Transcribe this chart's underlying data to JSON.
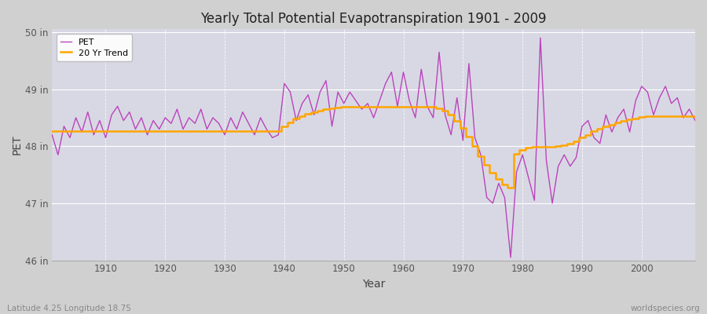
{
  "title": "Yearly Total Potential Evapotranspiration 1901 - 2009",
  "xlabel": "Year",
  "ylabel": "PET",
  "subtitle_left": "Latitude 4.25 Longitude 18.75",
  "subtitle_right": "worldspecies.org",
  "ylim": [
    46,
    50.05
  ],
  "xlim": [
    1901,
    2009
  ],
  "yticks": [
    46,
    47,
    48,
    49,
    50
  ],
  "ytick_labels": [
    "46 in",
    "47 in",
    "48 in",
    "49 in",
    "50 in"
  ],
  "xticks": [
    1910,
    1920,
    1930,
    1940,
    1950,
    1960,
    1970,
    1980,
    1990,
    2000
  ],
  "fig_bg_color": "#d0d0d0",
  "plot_bg_color": "#d8d8e4",
  "pet_color": "#bb44bb",
  "trend_color": "#FFA500",
  "legend_labels": [
    "PET",
    "20 Yr Trend"
  ],
  "years": [
    1901,
    1902,
    1903,
    1904,
    1905,
    1906,
    1907,
    1908,
    1909,
    1910,
    1911,
    1912,
    1913,
    1914,
    1915,
    1916,
    1917,
    1918,
    1919,
    1920,
    1921,
    1922,
    1923,
    1924,
    1925,
    1926,
    1927,
    1928,
    1929,
    1930,
    1931,
    1932,
    1933,
    1934,
    1935,
    1936,
    1937,
    1938,
    1939,
    1940,
    1941,
    1942,
    1943,
    1944,
    1945,
    1946,
    1947,
    1948,
    1949,
    1950,
    1951,
    1952,
    1953,
    1954,
    1955,
    1956,
    1957,
    1958,
    1959,
    1960,
    1961,
    1962,
    1963,
    1964,
    1965,
    1966,
    1967,
    1968,
    1969,
    1970,
    1971,
    1972,
    1973,
    1974,
    1975,
    1976,
    1977,
    1978,
    1979,
    1980,
    1981,
    1982,
    1983,
    1984,
    1985,
    1986,
    1987,
    1988,
    1989,
    1990,
    1991,
    1992,
    1993,
    1994,
    1995,
    1996,
    1997,
    1998,
    1999,
    2000,
    2001,
    2002,
    2003,
    2004,
    2005,
    2006,
    2007,
    2008,
    2009
  ],
  "pet_values": [
    48.2,
    47.85,
    48.35,
    48.15,
    48.5,
    48.25,
    48.6,
    48.2,
    48.45,
    48.15,
    48.55,
    48.7,
    48.45,
    48.6,
    48.3,
    48.5,
    48.2,
    48.45,
    48.3,
    48.5,
    48.4,
    48.65,
    48.3,
    48.5,
    48.4,
    48.65,
    48.3,
    48.5,
    48.4,
    48.2,
    48.5,
    48.3,
    48.6,
    48.4,
    48.2,
    48.5,
    48.3,
    48.15,
    48.2,
    49.1,
    48.95,
    48.45,
    48.75,
    48.9,
    48.55,
    48.95,
    49.15,
    48.35,
    48.95,
    48.75,
    48.95,
    48.8,
    48.65,
    48.75,
    48.5,
    48.8,
    49.1,
    49.3,
    48.7,
    49.3,
    48.8,
    48.5,
    49.35,
    48.7,
    48.5,
    49.65,
    48.55,
    48.2,
    48.85,
    48.1,
    49.45,
    48.15,
    47.85,
    47.1,
    47.0,
    47.35,
    47.1,
    46.05,
    47.55,
    47.85,
    47.45,
    47.05,
    49.9,
    47.75,
    47.0,
    47.65,
    47.85,
    47.65,
    47.8,
    48.35,
    48.45,
    48.15,
    48.05,
    48.55,
    48.25,
    48.5,
    48.65,
    48.25,
    48.8,
    49.05,
    48.95,
    48.55,
    48.85,
    49.05,
    48.75,
    48.85,
    48.5,
    48.65,
    48.45
  ],
  "trend_values": [
    48.27,
    48.27,
    48.27,
    48.27,
    48.27,
    48.27,
    48.27,
    48.27,
    48.27,
    48.27,
    48.27,
    48.27,
    48.27,
    48.27,
    48.27,
    48.27,
    48.27,
    48.27,
    48.27,
    48.27,
    48.27,
    48.27,
    48.27,
    48.27,
    48.27,
    48.27,
    48.27,
    48.27,
    48.27,
    48.27,
    48.27,
    48.27,
    48.27,
    48.27,
    48.27,
    48.27,
    48.27,
    48.27,
    48.27,
    48.35,
    48.42,
    48.48,
    48.53,
    48.57,
    48.6,
    48.63,
    48.65,
    48.67,
    48.68,
    48.69,
    48.69,
    48.69,
    48.69,
    48.69,
    48.69,
    48.69,
    48.69,
    48.69,
    48.69,
    48.69,
    48.69,
    48.69,
    48.69,
    48.69,
    48.69,
    48.67,
    48.62,
    48.55,
    48.45,
    48.32,
    48.17,
    48.0,
    47.83,
    47.68,
    47.54,
    47.42,
    47.33,
    47.27,
    47.87,
    47.93,
    47.97,
    47.99,
    47.99,
    47.99,
    47.99,
    48.0,
    48.02,
    48.05,
    48.09,
    48.15,
    48.2,
    48.26,
    48.31,
    48.35,
    48.38,
    48.41,
    48.44,
    48.47,
    48.49,
    48.51,
    48.52,
    48.53,
    48.53,
    48.53,
    48.53,
    48.53,
    48.53,
    48.53,
    48.53
  ]
}
